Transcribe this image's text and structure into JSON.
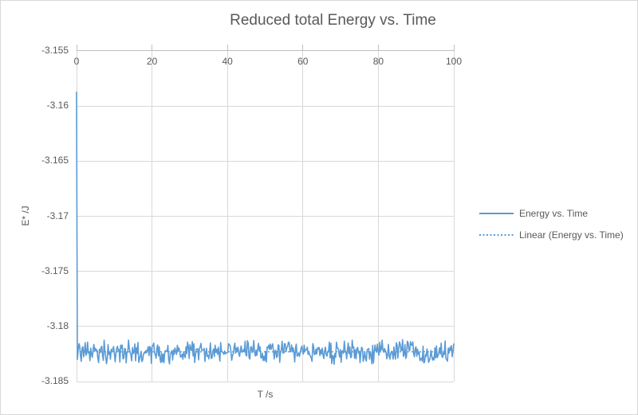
{
  "window": {
    "background_color": "#FFFFFF",
    "border_color": "#D9D9D9"
  },
  "chart_data": {
    "type": "line",
    "title": "Reduced total Energy vs. Time",
    "xlabel": "T /s",
    "ylabel": "E* /J",
    "xlim": [
      0,
      100
    ],
    "ylim": [
      -3.185,
      -3.155
    ],
    "x_tick_values": [
      0,
      20,
      40,
      60,
      80,
      100
    ],
    "x_tick_labels": [
      "0",
      "20",
      "40",
      "60",
      "80",
      "100"
    ],
    "x_axis_position": "top",
    "y_tick_values": [
      -3.155,
      -3.16,
      -3.165,
      -3.17,
      -3.175,
      -3.18,
      -3.185
    ],
    "y_tick_labels": [
      "-3.155",
      "-3.16",
      "-3.165",
      "-3.17",
      "-3.175",
      "-3.18",
      "-3.185"
    ],
    "grid": true,
    "gridline_color": "#D9D9D9",
    "axis_line_color": "#BFBFBF",
    "text_color": "#595959",
    "legend_position": "right",
    "series": [
      {
        "name": "Energy vs. Time",
        "kind": "data",
        "line_style": "solid",
        "color": "#5B9BD5",
        "first_point": {
          "x": 0,
          "y": -3.1587
        },
        "second_point_y": -3.183,
        "steady_state_mean": -3.1823,
        "noise_half_range": 0.0012,
        "n_points": 480,
        "noise_seed": 42,
        "description": "Starts at -3.1587 J at t=0, drops almost vertically, then fluctuates randomly in a flat noisy band between about -3.181 and -3.184 J for the rest of 0-100 s"
      },
      {
        "name": "Linear (Energy vs. Time)",
        "kind": "trendline",
        "line_style": "dotted",
        "color": "#5B9BD5",
        "value": -3.1823,
        "description": "Flat linear fit at about -3.1823 J, hidden inside the noise band"
      }
    ]
  }
}
